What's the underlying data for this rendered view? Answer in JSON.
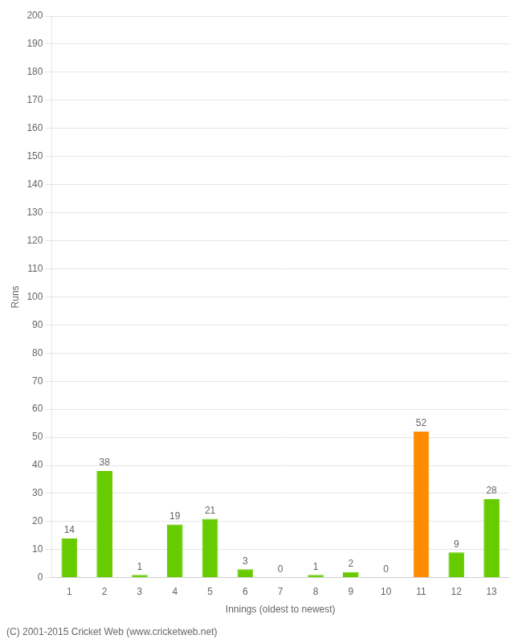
{
  "chart_data": {
    "type": "bar",
    "categories": [
      1,
      2,
      3,
      4,
      5,
      6,
      7,
      8,
      9,
      10,
      11,
      12,
      13
    ],
    "values": [
      14,
      38,
      1,
      19,
      21,
      3,
      0,
      1,
      2,
      0,
      52,
      9,
      28
    ],
    "colors": [
      "#66cc00",
      "#66cc00",
      "#66cc00",
      "#66cc00",
      "#66cc00",
      "#66cc00",
      "#66cc00",
      "#66cc00",
      "#66cc00",
      "#66cc00",
      "#ff8c00",
      "#66cc00",
      "#66cc00"
    ],
    "xlabel": "Innings (oldest to newest)",
    "ylabel": "Runs",
    "ylim": [
      0,
      200
    ],
    "yticks": [
      0,
      10,
      20,
      30,
      40,
      50,
      60,
      70,
      80,
      90,
      100,
      110,
      120,
      130,
      140,
      150,
      160,
      170,
      180,
      190,
      200
    ],
    "grid": true,
    "data_labels": true,
    "annotations": [
      "(C) 2001-2015 Cricket Web (www.cricketweb.net)"
    ]
  }
}
